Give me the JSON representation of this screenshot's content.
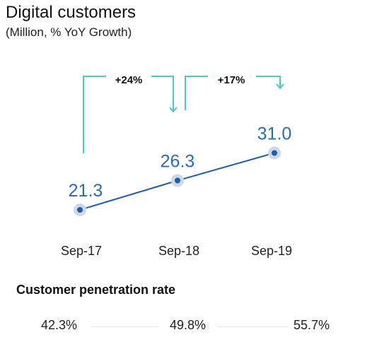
{
  "header": {
    "title": "Digital customers",
    "subtitle": "(Million, % YoY Growth)"
  },
  "chart_data": {
    "type": "line",
    "categories": [
      "Sep-17",
      "Sep-18",
      "Sep-19"
    ],
    "series": [
      {
        "values": [
          21.3,
          26.3,
          31.0
        ]
      }
    ],
    "data_labels": [
      "21.3",
      "26.3",
      "31.0"
    ],
    "growth_annotations": [
      {
        "from": "Sep-17",
        "to": "Sep-18",
        "label": "+24%"
      },
      {
        "from": "Sep-18",
        "to": "Sep-19",
        "label": "+17%"
      }
    ],
    "line_color": "#1a5fa8",
    "label_color": "#2a6cb0",
    "annotation_color": "#4cc9c5",
    "grid": false
  },
  "penetration": {
    "title": "Customer penetration rate",
    "values": [
      "42.3%",
      "49.8%",
      "55.7%"
    ]
  }
}
